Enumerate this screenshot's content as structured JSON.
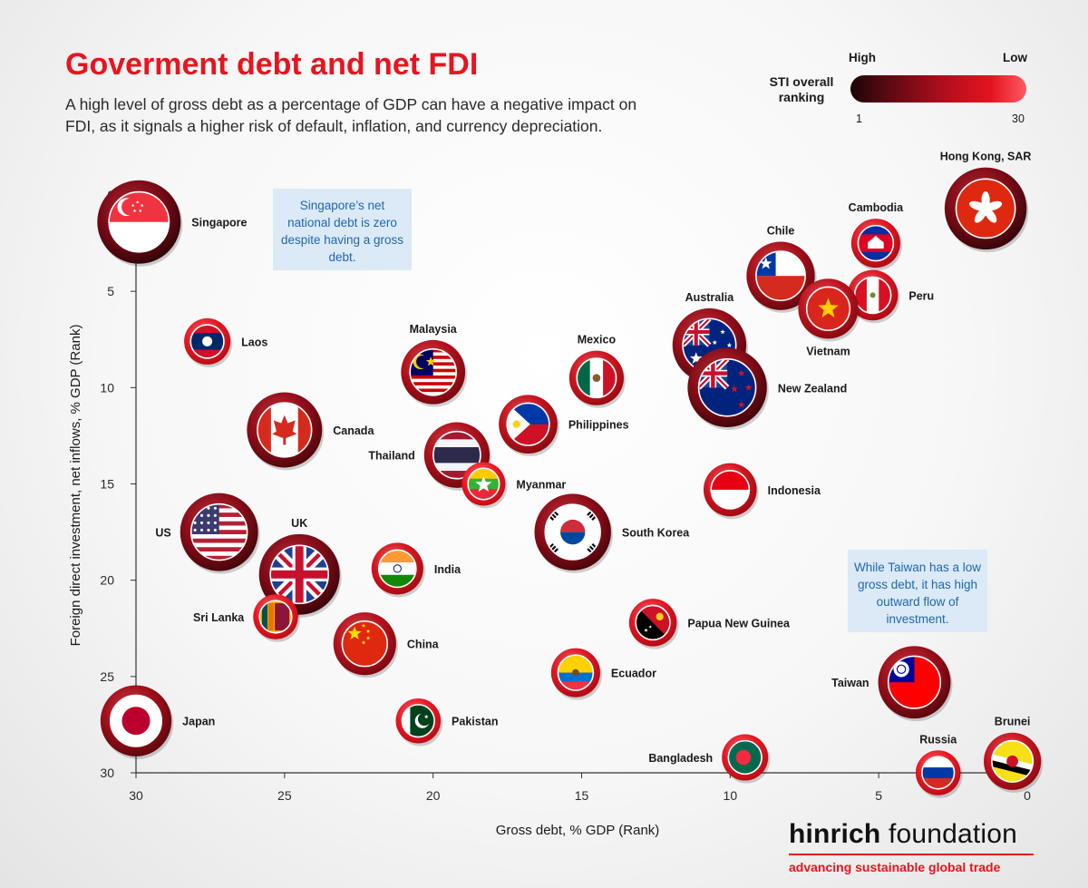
{
  "header": {
    "title": "Goverment debt and net FDI",
    "subtitle": "A high level of gross debt as a percentage of GDP can have a negative impact on FDI, as it signals a higher risk of default, inflation, and currency depreciation."
  },
  "legend": {
    "title": "STI overall ranking",
    "high_label": "High",
    "low_label": "Low",
    "min_value": "1",
    "max_value": "30"
  },
  "notes": {
    "singapore": "Singapore’s net national debt is zero despite having a gross debt.",
    "taiwan": "While Taiwan has a low gross debt, it has high outward flow of investment."
  },
  "logo": {
    "name_bold": "hinrich",
    "name_rest": " foundation",
    "tagline": "advancing sustainable global trade"
  },
  "chart_data": {
    "type": "scatter",
    "title": "Goverment debt and net FDI",
    "xlabel": "Gross debt, % GDP (Rank)",
    "ylabel": "Foreign direct investment, net inflows, % GDP (Rank)",
    "xlim": [
      30,
      0
    ],
    "ylim": [
      0,
      30
    ],
    "x_ticks": [
      30,
      25,
      20,
      15,
      10,
      5,
      0
    ],
    "y_ticks": [
      0,
      5,
      10,
      15,
      20,
      25,
      30
    ],
    "size_encoding": "STI overall ranking (1 = High, 30 = Low)",
    "points": [
      {
        "name": "Hong Kong, SAR",
        "x": 1.4,
        "y": 0.7,
        "sti": 2,
        "flag": "hong-kong"
      },
      {
        "name": "Singapore",
        "x": 29.9,
        "y": 1.4,
        "sti": 1,
        "flag": "singapore"
      },
      {
        "name": "Cambodia",
        "x": 5.1,
        "y": 2.5,
        "sti": 26,
        "flag": "cambodia"
      },
      {
        "name": "Chile",
        "x": 8.3,
        "y": 4.2,
        "sti": 12,
        "flag": "chile"
      },
      {
        "name": "Peru",
        "x": 5.2,
        "y": 5.2,
        "sti": 25,
        "flag": "peru"
      },
      {
        "name": "Vietnam",
        "x": 6.7,
        "y": 5.9,
        "sti": 18,
        "flag": "vietnam"
      },
      {
        "name": "Laos",
        "x": 27.6,
        "y": 7.6,
        "sti": 28,
        "flag": "laos"
      },
      {
        "name": "Australia",
        "x": 10.7,
        "y": 7.8,
        "sti": 8,
        "flag": "australia"
      },
      {
        "name": "Malaysia",
        "x": 20.0,
        "y": 9.2,
        "sti": 15,
        "flag": "malaysia"
      },
      {
        "name": "Mexico",
        "x": 14.5,
        "y": 9.5,
        "sti": 22,
        "flag": "mexico"
      },
      {
        "name": "New Zealand",
        "x": 10.1,
        "y": 10.0,
        "sti": 4,
        "flag": "new-zealand"
      },
      {
        "name": "Philippines",
        "x": 16.8,
        "y": 11.9,
        "sti": 19,
        "flag": "philippines"
      },
      {
        "name": "Canada",
        "x": 25.0,
        "y": 12.2,
        "sti": 7,
        "flag": "canada"
      },
      {
        "name": "Thailand",
        "x": 19.2,
        "y": 13.5,
        "sti": 14,
        "flag": "thailand"
      },
      {
        "name": "Myanmar",
        "x": 18.3,
        "y": 15.0,
        "sti": 30,
        "flag": "myanmar"
      },
      {
        "name": "Indonesia",
        "x": 10.0,
        "y": 15.3,
        "sti": 23,
        "flag": "indonesia"
      },
      {
        "name": "US",
        "x": 27.2,
        "y": 17.5,
        "sti": 5,
        "flag": "us"
      },
      {
        "name": "South Korea",
        "x": 15.3,
        "y": 17.5,
        "sti": 6,
        "flag": "south-korea"
      },
      {
        "name": "UK",
        "x": 24.5,
        "y": 19.7,
        "sti": 3,
        "flag": "uk"
      },
      {
        "name": "India",
        "x": 21.2,
        "y": 19.4,
        "sti": 24,
        "flag": "india"
      },
      {
        "name": "Sri Lanka",
        "x": 25.3,
        "y": 21.9,
        "sti": 29,
        "flag": "sri-lanka"
      },
      {
        "name": "Papua New Guinea",
        "x": 12.6,
        "y": 22.2,
        "sti": 27,
        "flag": "papua-new-guinea"
      },
      {
        "name": "China",
        "x": 22.3,
        "y": 23.3,
        "sti": 16,
        "flag": "china"
      },
      {
        "name": "Ecuador",
        "x": 15.2,
        "y": 24.8,
        "sti": 26,
        "flag": "ecuador"
      },
      {
        "name": "Taiwan",
        "x": 3.8,
        "y": 25.3,
        "sti": 9,
        "flag": "taiwan"
      },
      {
        "name": "Japan",
        "x": 30.0,
        "y": 27.3,
        "sti": 10,
        "flag": "japan"
      },
      {
        "name": "Pakistan",
        "x": 20.5,
        "y": 27.3,
        "sti": 29,
        "flag": "pakistan"
      },
      {
        "name": "Bangladesh",
        "x": 9.5,
        "y": 29.2,
        "sti": 28,
        "flag": "bangladesh"
      },
      {
        "name": "Brunei",
        "x": 0.5,
        "y": 29.4,
        "sti": 20,
        "flag": "brunei"
      },
      {
        "name": "Russia",
        "x": 3.0,
        "y": 30.0,
        "sti": 29,
        "flag": "russia"
      }
    ]
  }
}
